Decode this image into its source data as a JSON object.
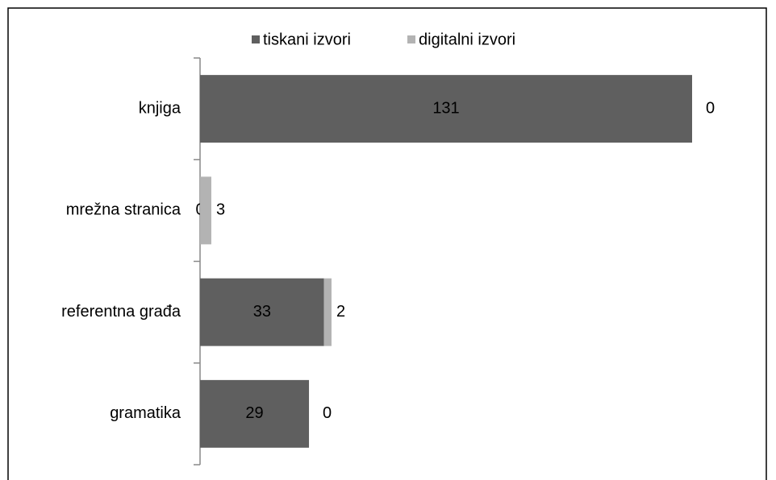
{
  "chart_data": {
    "type": "bar",
    "orientation": "horizontal",
    "stacked": true,
    "categories": [
      "knjiga",
      "mrežna stranica",
      "referentna građa",
      "gramatika"
    ],
    "series": [
      {
        "name": "tiskani izvori",
        "color": "#5f5f5f",
        "values": [
          131,
          0,
          33,
          29
        ]
      },
      {
        "name": "digitalni izvori",
        "color": "#b3b3b3",
        "values": [
          0,
          3,
          2,
          0
        ]
      }
    ],
    "legend": "top"
  }
}
